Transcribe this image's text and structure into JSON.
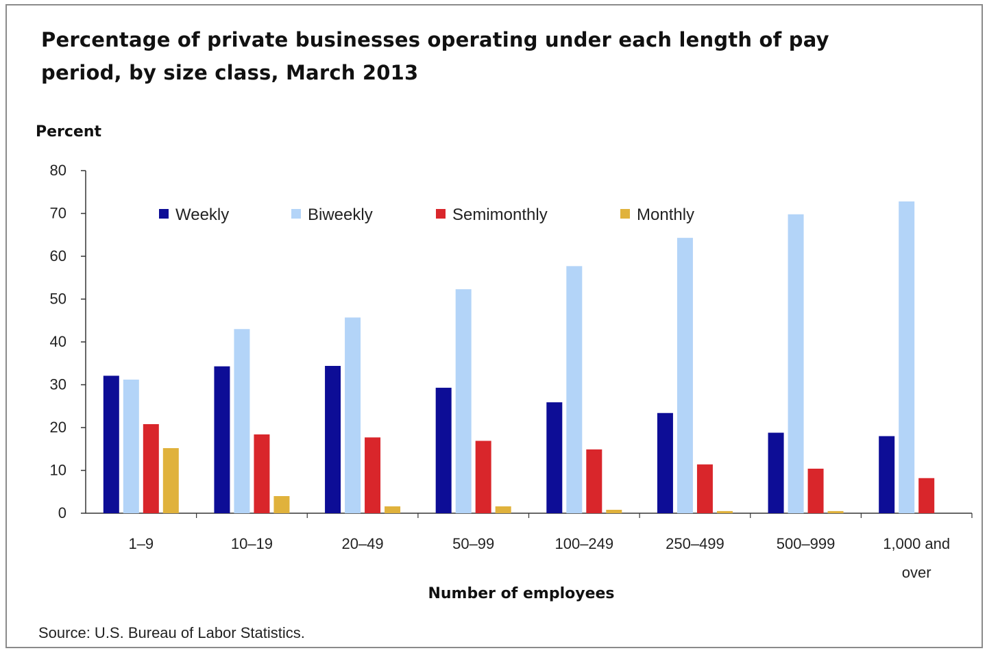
{
  "chart_data": {
    "type": "bar",
    "title": "Percentage of private businesses operating under each length of pay period, by size class, March 2013",
    "ylabel": "Percent",
    "xlabel": "Number of employees",
    "ylim": [
      0,
      80
    ],
    "yticks": [
      "0",
      "10",
      "20",
      "30",
      "40",
      "50",
      "60",
      "70",
      "80"
    ],
    "categories": [
      [
        "1–9"
      ],
      [
        "10–19"
      ],
      [
        "20–49"
      ],
      [
        "50–99"
      ],
      [
        "100–249"
      ],
      [
        "250–499"
      ],
      [
        "500–999"
      ],
      [
        "1,000 and",
        "over"
      ]
    ],
    "series": [
      {
        "name": "Weekly",
        "color": "#0d0d96",
        "values": [
          32.1,
          34.3,
          34.4,
          29.3,
          25.9,
          23.4,
          18.8,
          18.0
        ]
      },
      {
        "name": "Biweekly",
        "color": "#b3d4f8",
        "values": [
          31.2,
          43.0,
          45.7,
          52.3,
          57.7,
          64.3,
          69.8,
          72.8
        ]
      },
      {
        "name": "Semimonthly",
        "color": "#d9262b",
        "values": [
          20.8,
          18.4,
          17.7,
          16.9,
          14.9,
          11.4,
          10.4,
          8.2
        ]
      },
      {
        "name": "Monthly",
        "color": "#e0b23c",
        "values": [
          15.2,
          4.0,
          1.6,
          1.6,
          0.8,
          0.5,
          0.5,
          0.0
        ]
      }
    ],
    "legend_position": "top",
    "grid": false
  },
  "source": "Source: U.S. Bureau of Labor Statistics."
}
